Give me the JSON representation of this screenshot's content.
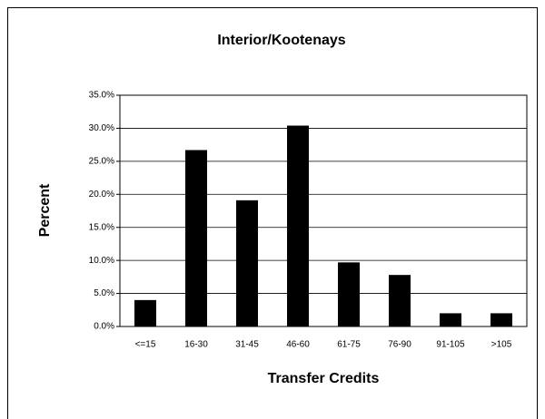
{
  "chart_data": {
    "type": "bar",
    "title": "Interior/Kootenays",
    "x_label": "Transfer Credits",
    "y_label": "Percent",
    "categories": [
      "<=15",
      "16-30",
      "31-45",
      "46-60",
      "61-75",
      "76-90",
      "91-105",
      ">105"
    ],
    "values": [
      4.0,
      26.7,
      19.1,
      30.4,
      9.7,
      7.8,
      2.0,
      2.0
    ],
    "color": "#000000",
    "ylim": [
      0,
      35
    ],
    "yticks": [
      {
        "value": 0,
        "label": "0.0%"
      },
      {
        "value": 5,
        "label": "5.0%"
      },
      {
        "value": 10,
        "label": "10.0%"
      },
      {
        "value": 15,
        "label": "15.0%"
      },
      {
        "value": 20,
        "label": "20.0%"
      },
      {
        "value": 25,
        "label": "25.0%"
      },
      {
        "value": 30,
        "label": "30.0%"
      },
      {
        "value": 35,
        "label": "35.0%"
      }
    ],
    "grid": true
  }
}
